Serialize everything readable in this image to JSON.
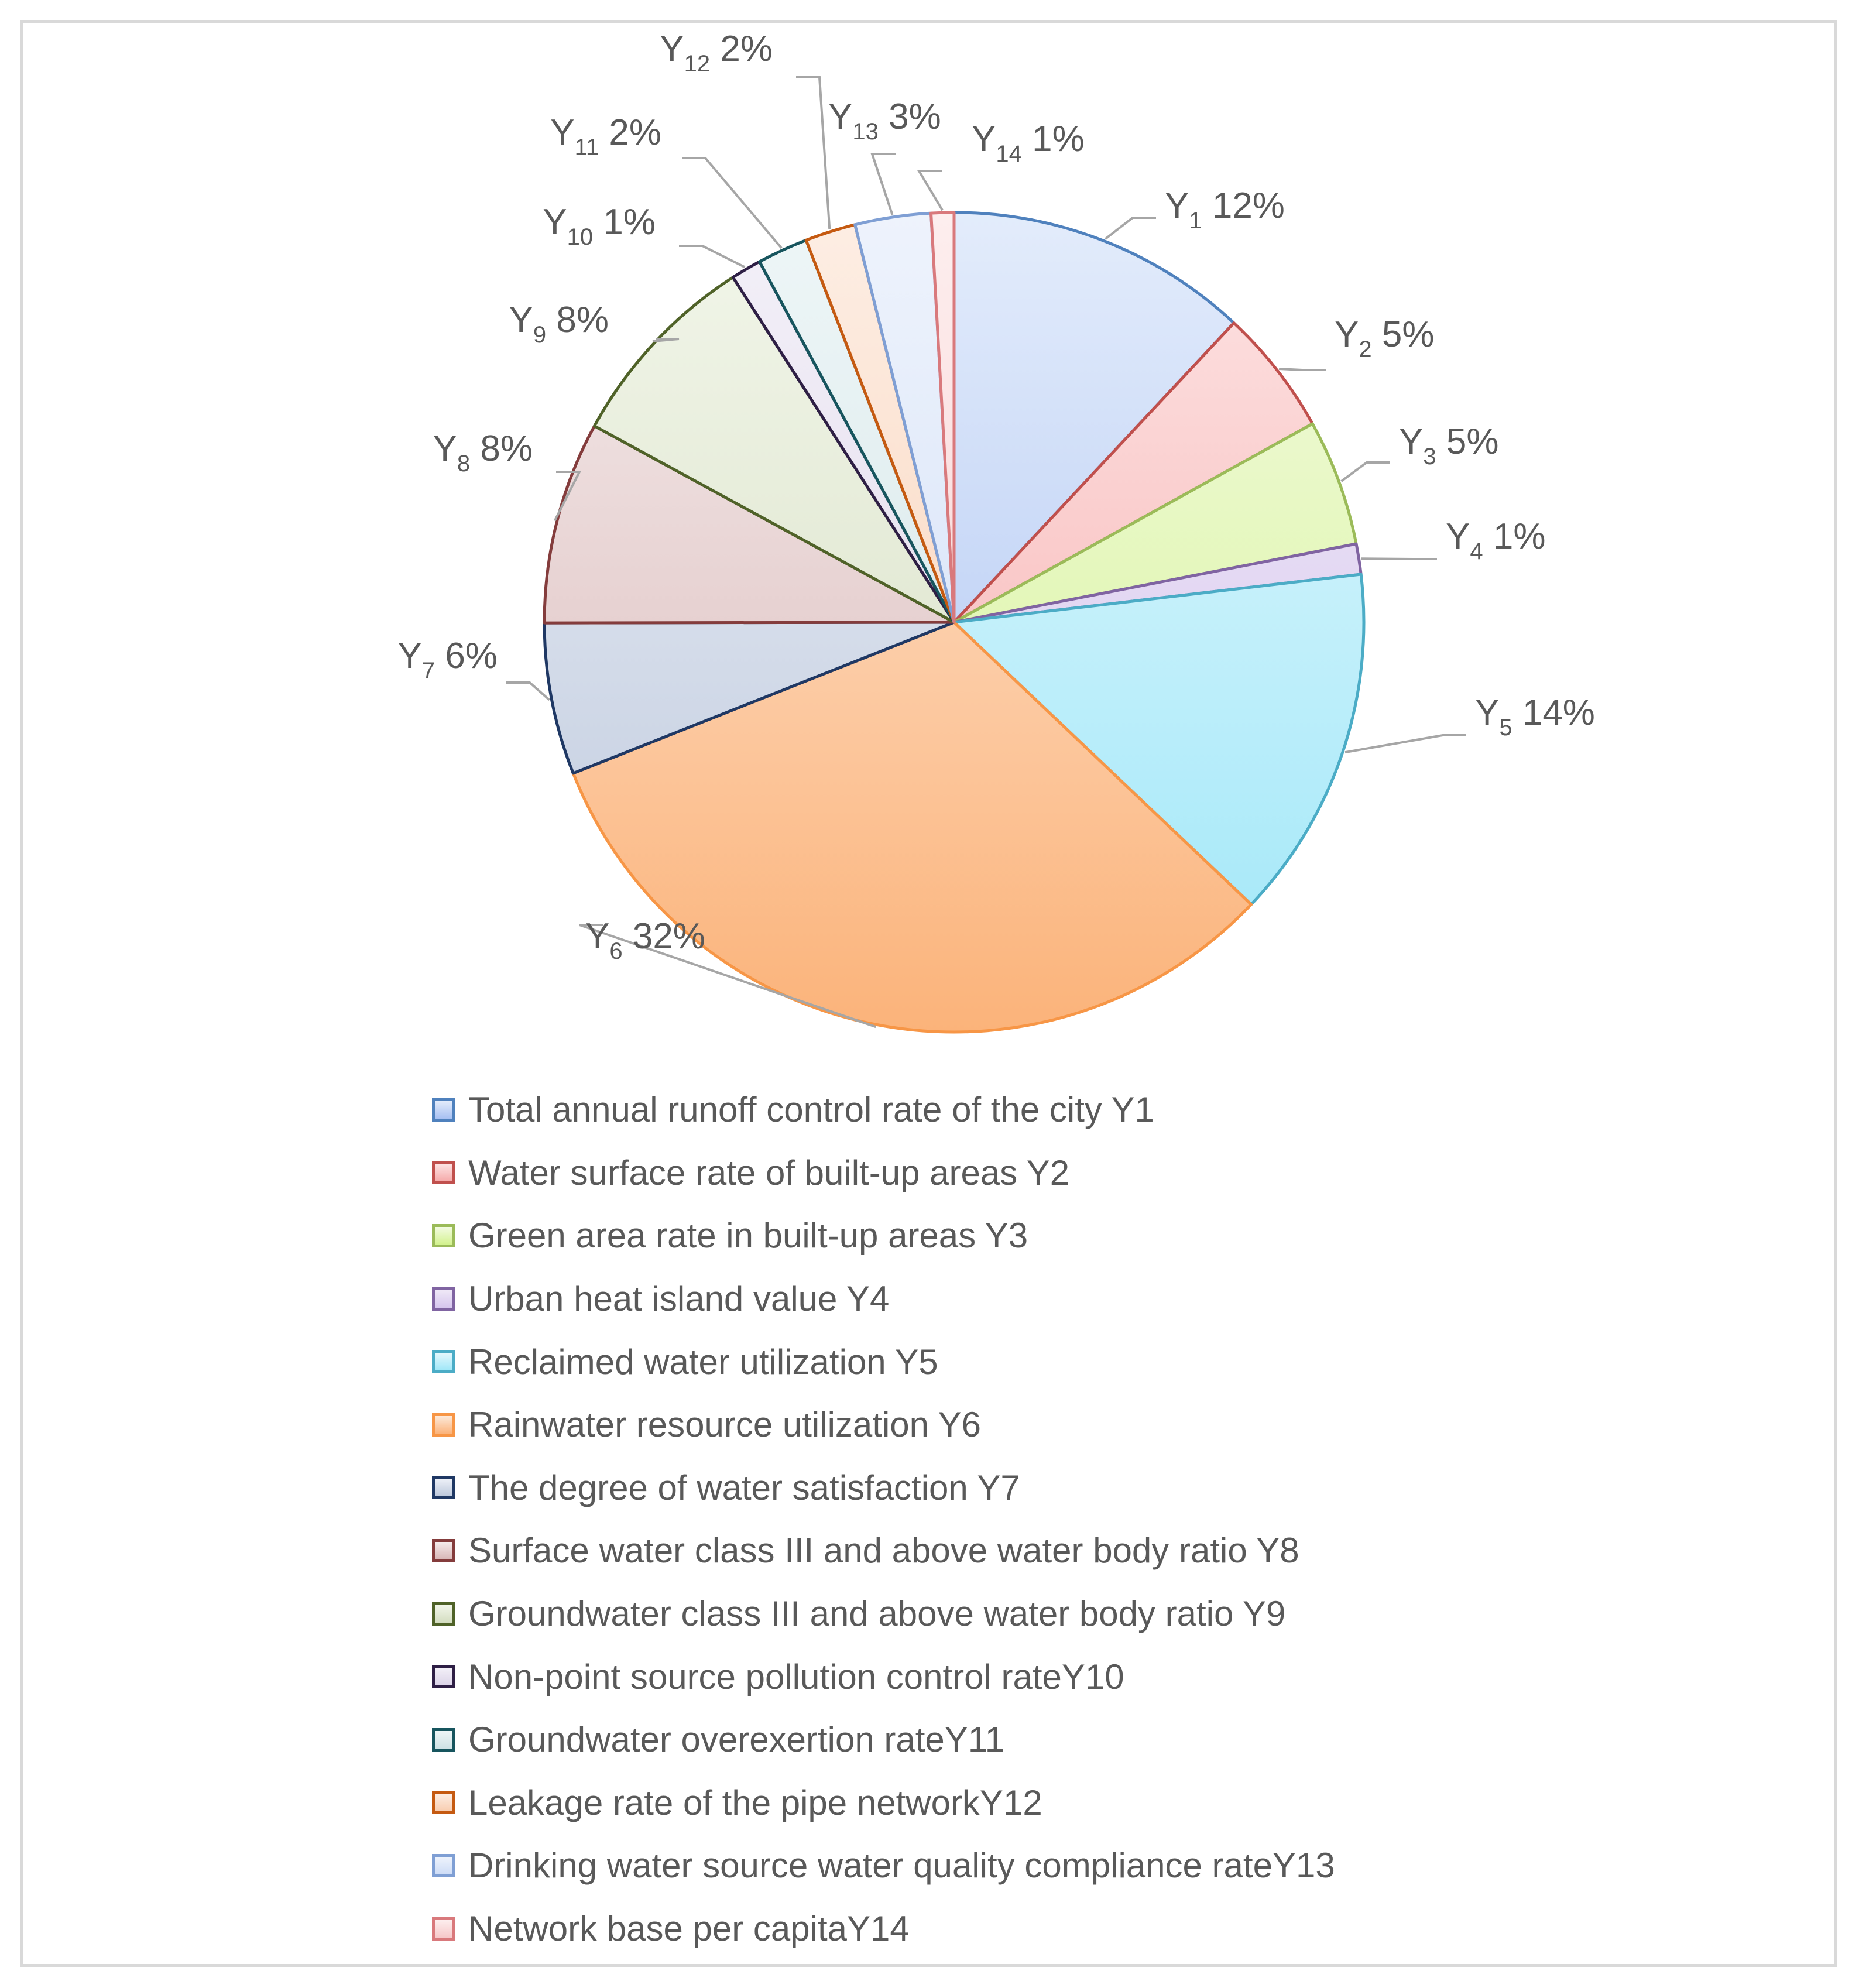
{
  "chart_data": {
    "type": "pie",
    "title": "",
    "slices": [
      {
        "id": "Y1",
        "label_base": "Y",
        "label_sub": "1",
        "value": 12,
        "pct_text": "12%",
        "legend": "Total annual runoff control rate of the city Y1",
        "stroke": "#4f81bd",
        "fill_light": "#e3ecfb",
        "fill_dark": "#a7c0f2"
      },
      {
        "id": "Y2",
        "label_base": "Y",
        "label_sub": "2",
        "value": 5,
        "pct_text": "5%",
        "legend": "Water surface rate of built-up areas Y2",
        "stroke": "#c0504d",
        "fill_light": "#fde4e4",
        "fill_dark": "#f5a9a9"
      },
      {
        "id": "Y3",
        "label_base": "Y",
        "label_sub": "3",
        "value": 5,
        "pct_text": "5%",
        "legend": "Green area rate in built-up areas Y3",
        "stroke": "#9bbb59",
        "fill_light": "#f3fbe2",
        "fill_dark": "#d3f28e"
      },
      {
        "id": "Y4",
        "label_base": "Y",
        "label_sub": "4",
        "value": 1.2,
        "pct_text": "1%",
        "legend": "Urban heat island value Y4",
        "stroke": "#8064a2",
        "fill_light": "#efe8f7",
        "fill_dark": "#d6c6ee"
      },
      {
        "id": "Y5",
        "label_base": "Y",
        "label_sub": "5",
        "value": 14,
        "pct_text": "14%",
        "legend": "Reclaimed water utilization Y5",
        "stroke": "#4bacc6",
        "fill_light": "#e5f8fd",
        "fill_dark": "#9fe7f8"
      },
      {
        "id": "Y6",
        "label_base": "Y",
        "label_sub": "6",
        "value": 32,
        "pct_text": "32%",
        "legend": "Rainwater resource utilization Y6",
        "stroke": "#f79646",
        "fill_light": "#fde9d9",
        "fill_dark": "#fbb37a"
      },
      {
        "id": "Y7",
        "label_base": "Y",
        "label_sub": "7",
        "value": 6,
        "pct_text": "6%",
        "legend": "The degree of water satisfaction Y7",
        "stroke": "#1f3864",
        "fill_light": "#eef1f8",
        "fill_dark": "#bcc8dc"
      },
      {
        "id": "Y8",
        "label_base": "Y",
        "label_sub": "8",
        "value": 8,
        "pct_text": "8%",
        "legend": "Surface water class III and above water body ratio Y8",
        "stroke": "#843c3c",
        "fill_light": "#f5ecec",
        "fill_dark": "#d8b6b6"
      },
      {
        "id": "Y9",
        "label_base": "Y",
        "label_sub": "9",
        "value": 8,
        "pct_text": "8%",
        "legend": "Groundwater class III and above water body ratio Y9",
        "stroke": "#4f6228",
        "fill_light": "#f2f6ea",
        "fill_dark": "#d4ddc0"
      },
      {
        "id": "Y10",
        "label_base": "Y",
        "label_sub": "10",
        "value": 1.2,
        "pct_text": "1%",
        "legend": "Non-point source pollution control rateY10",
        "stroke": "#2e1f45",
        "fill_light": "#f3f0f8",
        "fill_dark": "#dcd4e8"
      },
      {
        "id": "Y11",
        "label_base": "Y",
        "label_sub": "11",
        "value": 2,
        "pct_text": "2%",
        "legend": "Groundwater overexertion rateY11",
        "stroke": "#17555e",
        "fill_light": "#eef6f7",
        "fill_dark": "#cfe2e5"
      },
      {
        "id": "Y12",
        "label_base": "Y",
        "label_sub": "12",
        "value": 2,
        "pct_text": "2%",
        "legend": "Leakage rate of the pipe networkY12",
        "stroke": "#c55a11",
        "fill_light": "#fdeee4",
        "fill_dark": "#f8cdb0"
      },
      {
        "id": "Y13",
        "label_base": "Y",
        "label_sub": "13",
        "value": 3,
        "pct_text": "3%",
        "legend": "Drinking water source water quality compliance rateY13",
        "stroke": "#7f9fd4",
        "fill_light": "#eef3fc",
        "fill_dark": "#cddcf6"
      },
      {
        "id": "Y14",
        "label_base": "Y",
        "label_sub": "14",
        "value": 0.9,
        "pct_text": "1%",
        "legend": "Network base per capitaY14",
        "stroke": "#d9797c",
        "fill_light": "#fdeeee",
        "fill_dark": "#f6c8c9"
      }
    ],
    "start_angle_deg": 0,
    "direction": "clockwise",
    "legend_position": "bottom"
  }
}
